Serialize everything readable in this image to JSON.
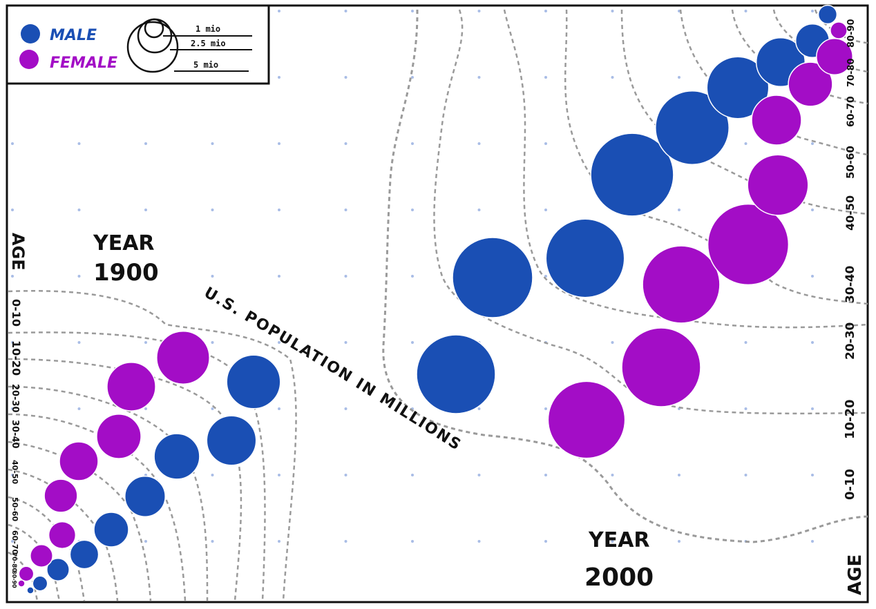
{
  "chart_data": {
    "type": "scatter",
    "title": "U.S. POPULATION IN MILLIONS",
    "colors": {
      "male": "#1a4fb4",
      "female": "#a30dc6",
      "contour": "#9a9a9a",
      "dots": "#a9bde6"
    },
    "legend": {
      "placement": "top-left",
      "series": [
        {
          "key": "male",
          "label": "MALE"
        },
        {
          "key": "female",
          "label": "FEMALE"
        }
      ],
      "size_scale": [
        {
          "label": "1 mio",
          "value": 1
        },
        {
          "label": "2.5 mio",
          "value": 2.5
        },
        {
          "label": "5 mio",
          "value": 5
        }
      ]
    },
    "panels": [
      {
        "key": "y1900",
        "year_label": "YEAR",
        "year": "1900",
        "axis_label": "AGE",
        "age_groups": [
          "0-10",
          "10-20",
          "20-30",
          "30-40",
          "40-50",
          "50-60",
          "60-70",
          "70-80",
          "80-90"
        ],
        "male": [
          9.2,
          7.8,
          6.6,
          5.2,
          3.8,
          2.6,
          1.6,
          0.7,
          0.15
        ],
        "female": [
          8.9,
          7.5,
          6.3,
          4.8,
          3.5,
          2.3,
          1.6,
          0.7,
          0.15
        ]
      },
      {
        "key": "y2000",
        "year_label": "YEAR",
        "year": "2000",
        "axis_label": "AGE",
        "age_groups": [
          "0-10",
          "10-20",
          "20-30",
          "30-40",
          "40-50",
          "50-60",
          "60-70",
          "70-80",
          "80-90"
        ],
        "male": [
          19.8,
          20.5,
          19.6,
          21.9,
          17.3,
          12.2,
          7.6,
          3.6,
          1.1
        ],
        "female": [
          18.9,
          19.8,
          19.1,
          20.8,
          11.7,
          7.9,
          6.2,
          4.2,
          0.9
        ]
      }
    ]
  }
}
